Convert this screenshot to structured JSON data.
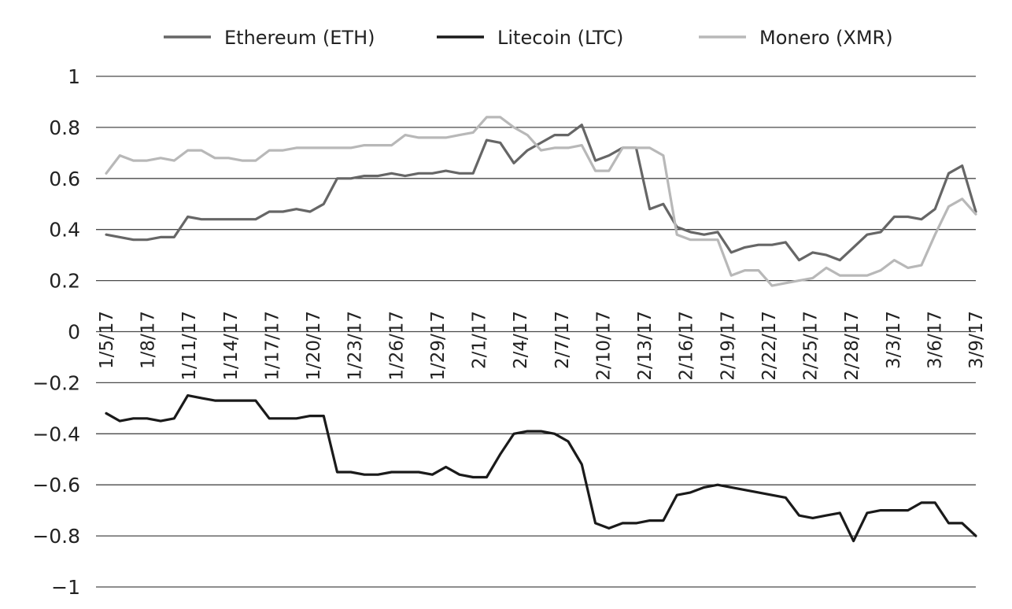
{
  "chart_data": {
    "type": "line",
    "title": "",
    "xlabel": "",
    "ylabel": "",
    "ylim": [
      -1,
      1
    ],
    "yticks": [
      1,
      0.8,
      0.6,
      0.4,
      0.2,
      0,
      -0.2,
      -0.4,
      -0.6,
      -0.8,
      -1
    ],
    "ytick_labels": [
      "1",
      "0.8",
      "0.6",
      "0.4",
      "0.2",
      "0",
      "−0.2",
      "−0.4",
      "−0.6",
      "−0.8",
      "−1"
    ],
    "xtick_labels": [
      "1/5/17",
      "1/8/17",
      "1/11/17",
      "1/14/17",
      "1/17/17",
      "1/20/17",
      "1/23/17",
      "1/26/17",
      "1/29/17",
      "2/1/17",
      "2/4/17",
      "2/7/17",
      "2/10/17",
      "2/13/17",
      "2/16/17",
      "2/19/17",
      "2/22/17",
      "2/25/17",
      "2/28/17",
      "3/3/17",
      "3/6/17",
      "3/9/17"
    ],
    "x_start": "1/5/17",
    "x_end": "3/9/17",
    "legend": "top",
    "grid": true,
    "series": [
      {
        "name": "Ethereum (ETH)",
        "color": "#666666",
        "values": [
          0.38,
          0.37,
          0.36,
          0.36,
          0.37,
          0.37,
          0.45,
          0.44,
          0.44,
          0.44,
          0.44,
          0.44,
          0.47,
          0.47,
          0.48,
          0.47,
          0.5,
          0.6,
          0.6,
          0.61,
          0.61,
          0.62,
          0.61,
          0.62,
          0.62,
          0.63,
          0.62,
          0.62,
          0.75,
          0.74,
          0.66,
          0.71,
          0.74,
          0.77,
          0.77,
          0.81,
          0.67,
          0.69,
          0.72,
          0.72,
          0.48,
          0.5,
          0.41,
          0.39,
          0.38,
          0.39,
          0.31,
          0.33,
          0.34,
          0.34,
          0.35,
          0.28,
          0.31,
          0.3,
          0.28,
          0.33,
          0.38,
          0.39,
          0.45,
          0.45,
          0.44,
          0.48,
          0.62,
          0.65,
          0.47
        ]
      },
      {
        "name": "Litecoin (LTC)",
        "color": "#1a1a1a",
        "values": [
          -0.32,
          -0.35,
          -0.34,
          -0.34,
          -0.35,
          -0.34,
          -0.25,
          -0.26,
          -0.27,
          -0.27,
          -0.27,
          -0.27,
          -0.34,
          -0.34,
          -0.34,
          -0.33,
          -0.33,
          -0.55,
          -0.55,
          -0.56,
          -0.56,
          -0.55,
          -0.55,
          -0.55,
          -0.56,
          -0.53,
          -0.56,
          -0.57,
          -0.57,
          -0.48,
          -0.4,
          -0.39,
          -0.39,
          -0.4,
          -0.43,
          -0.52,
          -0.75,
          -0.77,
          -0.75,
          -0.75,
          -0.74,
          -0.74,
          -0.64,
          -0.63,
          -0.61,
          -0.6,
          -0.61,
          -0.62,
          -0.63,
          -0.64,
          -0.65,
          -0.72,
          -0.73,
          -0.72,
          -0.71,
          -0.82,
          -0.71,
          -0.7,
          -0.7,
          -0.7,
          -0.67,
          -0.67,
          -0.75,
          -0.75,
          -0.8
        ]
      },
      {
        "name": "Monero (XMR)",
        "color": "#b8b8b8",
        "values": [
          0.62,
          0.69,
          0.67,
          0.67,
          0.68,
          0.67,
          0.71,
          0.71,
          0.68,
          0.68,
          0.67,
          0.67,
          0.71,
          0.71,
          0.72,
          0.72,
          0.72,
          0.72,
          0.72,
          0.73,
          0.73,
          0.73,
          0.77,
          0.76,
          0.76,
          0.76,
          0.77,
          0.78,
          0.84,
          0.84,
          0.8,
          0.77,
          0.71,
          0.72,
          0.72,
          0.73,
          0.63,
          0.63,
          0.72,
          0.72,
          0.72,
          0.69,
          0.38,
          0.36,
          0.36,
          0.36,
          0.22,
          0.24,
          0.24,
          0.18,
          0.19,
          0.2,
          0.21,
          0.25,
          0.22,
          0.22,
          0.22,
          0.24,
          0.28,
          0.25,
          0.26,
          0.38,
          0.49,
          0.52,
          0.46
        ]
      }
    ]
  }
}
